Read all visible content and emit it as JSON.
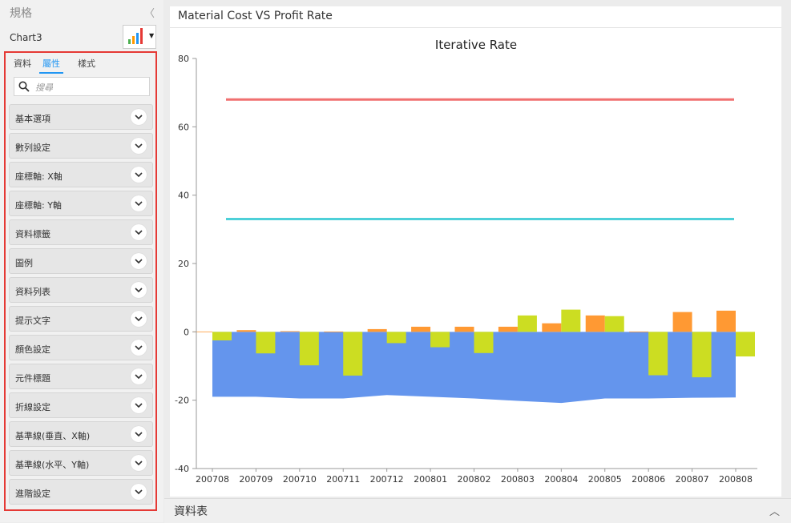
{
  "sidebar": {
    "title": "規格",
    "collapse_glyph": "〈",
    "chart_name": "Chart3",
    "tabs": [
      {
        "label": "資料"
      },
      {
        "label": "屬性"
      },
      {
        "label": "樣式"
      }
    ],
    "active_tab": "屬性",
    "search_placeholder": "搜尋",
    "sections": [
      {
        "label": "基本選項"
      },
      {
        "label": "數列設定"
      },
      {
        "label": "座標軸: X軸"
      },
      {
        "label": "座標軸: Y軸"
      },
      {
        "label": "資料標籤"
      },
      {
        "label": "圖例"
      },
      {
        "label": "資料列表"
      },
      {
        "label": "提示文字"
      },
      {
        "label": "顏色設定"
      },
      {
        "label": "元件標題"
      },
      {
        "label": "折線設定"
      },
      {
        "label": "基準線(垂直、X軸)"
      },
      {
        "label": "基準線(水平、Y軸)"
      },
      {
        "label": "進階設定"
      }
    ],
    "highlight_color": "#e53935"
  },
  "main": {
    "title": "Material Cost VS Profit Rate",
    "bottom_label": "資料表",
    "bottom_toggle": "︿"
  },
  "chart_data": {
    "type": "bar",
    "title": "Iterative Rate",
    "xlabel": "",
    "ylabel": "",
    "ylim": [
      -40,
      80
    ],
    "yticks": [
      -40,
      -20,
      0,
      20,
      40,
      60,
      80
    ],
    "categories": [
      "200708",
      "200709",
      "200710",
      "200711",
      "200712",
      "200801",
      "200802",
      "200803",
      "200804",
      "200805",
      "200806",
      "200807",
      "200808"
    ],
    "area": {
      "color": "#6495ed",
      "values": [
        -19,
        -19,
        -19.5,
        -19.5,
        -18.5,
        -19,
        -19.5,
        -20.2,
        -20.8,
        -19.5,
        -19.5,
        -19.3,
        -19.2
      ]
    },
    "series": [
      {
        "color": "#ff9933",
        "values": [
          0.1,
          0.5,
          0.2,
          0.1,
          0.8,
          1.5,
          1.5,
          1.5,
          2.5,
          4.8,
          0.1,
          5.8,
          6.2
        ]
      },
      {
        "color": "#ccdd22",
        "values": [
          -2.5,
          -6.3,
          -9.8,
          -12.8,
          -3.3,
          -4.5,
          -6.2,
          4.8,
          6.5,
          4.6,
          -12.7,
          -13.3,
          -7.2
        ]
      }
    ],
    "reference_lines": [
      {
        "value": 68,
        "color": "#f07070"
      },
      {
        "value": 33,
        "color": "#4dd0d8"
      }
    ],
    "grid": false,
    "legend": "none"
  }
}
